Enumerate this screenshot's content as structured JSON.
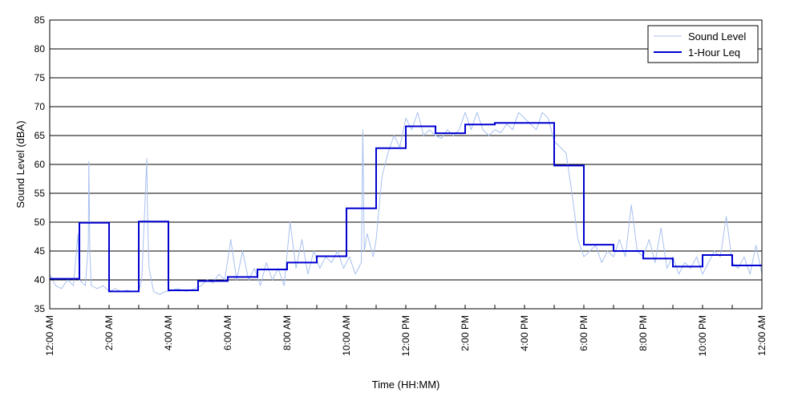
{
  "chart_data": {
    "type": "line",
    "xlabel": "Time (HH:MM)",
    "ylabel": "Sound Level (dBA)",
    "ylim": [
      35,
      85
    ],
    "yticks": [
      35,
      40,
      45,
      50,
      55,
      60,
      65,
      70,
      75,
      80,
      85
    ],
    "xlim": [
      0,
      24
    ],
    "xticks": [
      {
        "hour": 0,
        "label": "12:00 AM"
      },
      {
        "hour": 2,
        "label": "2:00 AM"
      },
      {
        "hour": 4,
        "label": "4:00 AM"
      },
      {
        "hour": 6,
        "label": "6:00 AM"
      },
      {
        "hour": 8,
        "label": "8:00 AM"
      },
      {
        "hour": 10,
        "label": "10:00 AM"
      },
      {
        "hour": 12,
        "label": "12:00 PM"
      },
      {
        "hour": 14,
        "label": "2:00 PM"
      },
      {
        "hour": 16,
        "label": "4:00 PM"
      },
      {
        "hour": 18,
        "label": "6:00 PM"
      },
      {
        "hour": 20,
        "label": "8:00 PM"
      },
      {
        "hour": 22,
        "label": "10:00 PM"
      },
      {
        "hour": 24,
        "label": "12:00 AM"
      }
    ],
    "grid": "horizontal",
    "legend_position": "top-right",
    "series": [
      {
        "name": "Sound Level",
        "color": "#a8c0f0",
        "style": "thin line",
        "x": [
          0,
          0.2,
          0.4,
          0.6,
          0.8,
          0.95,
          1.0,
          1.2,
          1.3,
          1.32,
          1.35,
          1.4,
          1.6,
          1.8,
          2.0,
          2.2,
          2.4,
          2.6,
          2.8,
          3.0,
          3.1,
          3.2,
          3.27,
          3.3,
          3.35,
          3.5,
          3.7,
          3.9,
          4.0,
          4.3,
          4.6,
          4.9,
          5.1,
          5.3,
          5.5,
          5.7,
          5.9,
          6.1,
          6.3,
          6.5,
          6.7,
          6.9,
          7.1,
          7.3,
          7.5,
          7.7,
          7.9,
          8.1,
          8.3,
          8.5,
          8.7,
          8.9,
          9.1,
          9.3,
          9.5,
          9.7,
          9.9,
          10.1,
          10.3,
          10.5,
          10.55,
          10.6,
          10.7,
          10.9,
          11.0,
          11.2,
          11.4,
          11.6,
          11.8,
          12.0,
          12.2,
          12.4,
          12.6,
          12.8,
          13.0,
          13.2,
          13.4,
          13.6,
          13.8,
          14.0,
          14.2,
          14.4,
          14.6,
          14.8,
          15.0,
          15.2,
          15.4,
          15.6,
          15.8,
          16.0,
          16.2,
          16.4,
          16.6,
          16.8,
          17.0,
          17.2,
          17.4,
          17.6,
          17.8,
          18.0,
          18.2,
          18.4,
          18.6,
          18.8,
          19.0,
          19.2,
          19.4,
          19.6,
          19.8,
          20.0,
          20.2,
          20.4,
          20.6,
          20.8,
          21.0,
          21.2,
          21.4,
          21.6,
          21.8,
          22.0,
          22.2,
          22.4,
          22.6,
          22.8,
          23.0,
          23.2,
          23.4,
          23.6,
          23.8,
          24.0
        ],
        "values": [
          41,
          39,
          38.5,
          40,
          39,
          48,
          40,
          39,
          46,
          60.5,
          45,
          39,
          38.5,
          39,
          38,
          38.5,
          38,
          38.2,
          38,
          38,
          40,
          52,
          61,
          50,
          42,
          38,
          37.5,
          38,
          38,
          38.5,
          38,
          38.5,
          39,
          40,
          39.5,
          41,
          40,
          47,
          40,
          45,
          40,
          42,
          39,
          43,
          40,
          42,
          39,
          50,
          42,
          47,
          41,
          45,
          42,
          44,
          43,
          45,
          42,
          44,
          41,
          43,
          66,
          45,
          48,
          44,
          47,
          58,
          62,
          65,
          63,
          68,
          66,
          69,
          65,
          66,
          65,
          64.5,
          66,
          65,
          66,
          69,
          66,
          69,
          66,
          65,
          66,
          65.5,
          67,
          66,
          69,
          68,
          67,
          66,
          69,
          68,
          64,
          63,
          62,
          55,
          47,
          44,
          45,
          46,
          43,
          45,
          44,
          47,
          44,
          53,
          45,
          44,
          47,
          43,
          49,
          42,
          44,
          41,
          43,
          42,
          44,
          41,
          43,
          45,
          44,
          51,
          43,
          42,
          44,
          41,
          46,
          41
        ]
      },
      {
        "name": "1-Hour Leq",
        "color": "#0000d0",
        "style": "thick step",
        "step_starts": [
          0,
          1,
          2,
          3,
          4,
          5,
          6,
          7,
          8,
          9,
          10,
          11,
          12,
          13,
          14,
          15,
          16,
          17,
          18,
          19,
          20,
          21,
          22,
          23
        ],
        "values": [
          40.2,
          49.9,
          38.0,
          50.1,
          38.2,
          39.8,
          40.5,
          41.8,
          43.0,
          44.1,
          52.4,
          62.8,
          66.6,
          65.4,
          66.9,
          67.2,
          67.2,
          59.8,
          46.1,
          45.0,
          43.7,
          42.3,
          44.3,
          42.5
        ]
      }
    ]
  }
}
